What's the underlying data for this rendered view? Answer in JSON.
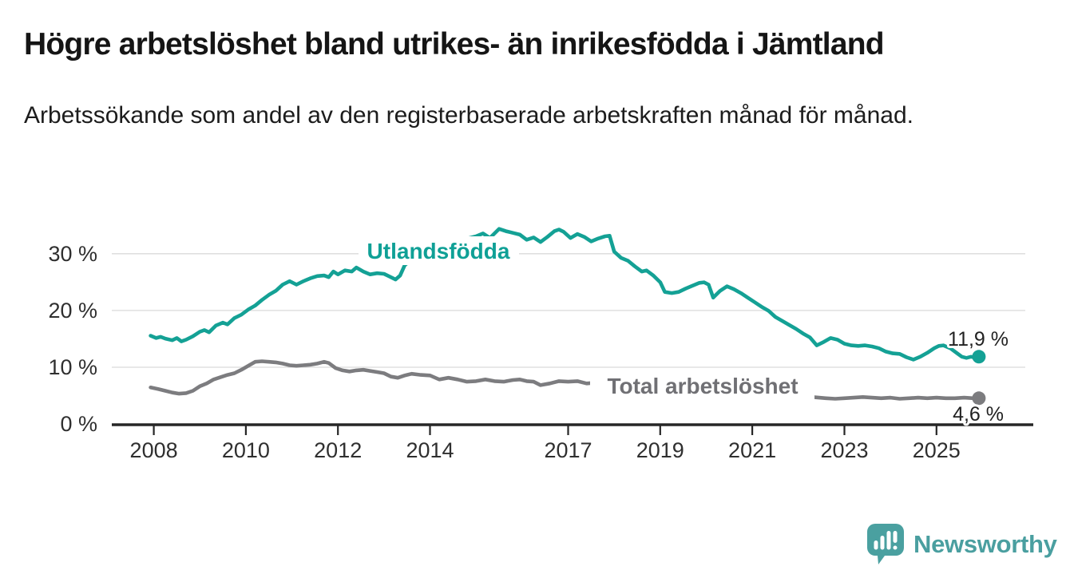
{
  "header": {
    "title": "Högre arbetslöshet bland utrikes- än inrikesfödda i Jämtland",
    "subtitle": "Arbetssökande som andel av den registerbaserade arbetskraften månad för månad."
  },
  "branding": {
    "name": "Newsworthy",
    "logo_icon": "bar-chart-speech-bubble-icon",
    "color": "#4a9fa0"
  },
  "colors": {
    "accent_teal": "#14a195",
    "neutral_gray": "#7c7c7f",
    "grid": "#dadada",
    "axis": "#262626",
    "text_dark": "#2f2f2f"
  },
  "chart_data": {
    "type": "line",
    "title": "Högre arbetslöshet bland utrikes- än inrikesfödda i Jämtland",
    "subtitle": "Arbetssökande som andel av den registerbaserade arbetskraften månad för månad.",
    "unit": "%",
    "grid": true,
    "legend_position": "inline-labels-on-lines",
    "x_axis": {
      "range": [
        2007.9,
        2026.3
      ],
      "ticks": [
        2008,
        2010,
        2012,
        2014,
        2017,
        2019,
        2021,
        2023,
        2025
      ],
      "tick_labels": [
        "2008",
        "2010",
        "2012",
        "2014",
        "2017",
        "2019",
        "2021",
        "2023",
        "2025"
      ]
    },
    "y_axis": {
      "range": [
        0,
        36
      ],
      "ticks": [
        0,
        10,
        20,
        30
      ],
      "tick_labels": [
        "0 %",
        "10 %",
        "20 %",
        "30 %"
      ]
    },
    "series": [
      {
        "name": "Utlandsfödda",
        "color": "#14a195",
        "end_value": 11.9,
        "end_label": "11,9 %",
        "points": [
          [
            2007.93,
            15.6
          ],
          [
            2008.05,
            15.2
          ],
          [
            2008.15,
            15.4
          ],
          [
            2008.25,
            15.1
          ],
          [
            2008.4,
            14.8
          ],
          [
            2008.5,
            15.2
          ],
          [
            2008.6,
            14.6
          ],
          [
            2008.7,
            14.9
          ],
          [
            2008.85,
            15.5
          ],
          [
            2009.0,
            16.3
          ],
          [
            2009.1,
            16.6
          ],
          [
            2009.2,
            16.2
          ],
          [
            2009.35,
            17.4
          ],
          [
            2009.5,
            17.9
          ],
          [
            2009.6,
            17.6
          ],
          [
            2009.75,
            18.7
          ],
          [
            2009.9,
            19.3
          ],
          [
            2010.05,
            20.2
          ],
          [
            2010.2,
            20.9
          ],
          [
            2010.35,
            21.9
          ],
          [
            2010.5,
            22.8
          ],
          [
            2010.65,
            23.5
          ],
          [
            2010.8,
            24.6
          ],
          [
            2010.95,
            25.2
          ],
          [
            2011.1,
            24.6
          ],
          [
            2011.25,
            25.2
          ],
          [
            2011.4,
            25.7
          ],
          [
            2011.55,
            26.1
          ],
          [
            2011.7,
            26.2
          ],
          [
            2011.8,
            25.9
          ],
          [
            2011.9,
            26.9
          ],
          [
            2012.0,
            26.4
          ],
          [
            2012.15,
            27.1
          ],
          [
            2012.3,
            26.9
          ],
          [
            2012.4,
            27.6
          ],
          [
            2012.55,
            26.9
          ],
          [
            2012.7,
            26.4
          ],
          [
            2012.85,
            26.6
          ],
          [
            2013.0,
            26.5
          ],
          [
            2013.1,
            26.1
          ],
          [
            2013.25,
            25.5
          ],
          [
            2013.35,
            26.2
          ],
          [
            2013.45,
            28.0
          ],
          [
            2013.55,
            28.7
          ],
          [
            2013.75,
            29.6
          ],
          [
            2014.0,
            30.5
          ],
          [
            2014.25,
            31.3
          ],
          [
            2014.5,
            31.9
          ],
          [
            2014.75,
            32.6
          ],
          [
            2015.0,
            33.1
          ],
          [
            2015.15,
            33.6
          ],
          [
            2015.3,
            32.8
          ],
          [
            2015.5,
            34.4
          ],
          [
            2015.65,
            34.0
          ],
          [
            2015.8,
            33.7
          ],
          [
            2015.95,
            33.4
          ],
          [
            2016.1,
            32.5
          ],
          [
            2016.25,
            32.9
          ],
          [
            2016.4,
            32.1
          ],
          [
            2016.55,
            33.0
          ],
          [
            2016.7,
            34.0
          ],
          [
            2016.8,
            34.3
          ],
          [
            2016.9,
            33.9
          ],
          [
            2017.05,
            32.8
          ],
          [
            2017.2,
            33.5
          ],
          [
            2017.35,
            33.0
          ],
          [
            2017.5,
            32.2
          ],
          [
            2017.65,
            32.7
          ],
          [
            2017.8,
            33.1
          ],
          [
            2017.9,
            33.2
          ],
          [
            2018.0,
            30.4
          ],
          [
            2018.15,
            29.3
          ],
          [
            2018.3,
            28.8
          ],
          [
            2018.45,
            27.8
          ],
          [
            2018.6,
            26.9
          ],
          [
            2018.7,
            27.1
          ],
          [
            2018.85,
            26.2
          ],
          [
            2019.0,
            25.0
          ],
          [
            2019.1,
            23.3
          ],
          [
            2019.25,
            23.1
          ],
          [
            2019.4,
            23.3
          ],
          [
            2019.55,
            23.9
          ],
          [
            2019.7,
            24.4
          ],
          [
            2019.85,
            24.9
          ],
          [
            2019.95,
            25.0
          ],
          [
            2020.05,
            24.6
          ],
          [
            2020.15,
            22.3
          ],
          [
            2020.3,
            23.5
          ],
          [
            2020.45,
            24.3
          ],
          [
            2020.6,
            23.8
          ],
          [
            2020.75,
            23.1
          ],
          [
            2020.9,
            22.3
          ],
          [
            2021.05,
            21.5
          ],
          [
            2021.2,
            20.7
          ],
          [
            2021.35,
            20.0
          ],
          [
            2021.5,
            18.9
          ],
          [
            2021.65,
            18.2
          ],
          [
            2021.8,
            17.5
          ],
          [
            2021.95,
            16.8
          ],
          [
            2022.1,
            16.0
          ],
          [
            2022.25,
            15.3
          ],
          [
            2022.4,
            13.9
          ],
          [
            2022.55,
            14.5
          ],
          [
            2022.7,
            15.2
          ],
          [
            2022.85,
            14.9
          ],
          [
            2023.0,
            14.2
          ],
          [
            2023.15,
            13.9
          ],
          [
            2023.3,
            13.8
          ],
          [
            2023.45,
            13.9
          ],
          [
            2023.6,
            13.7
          ],
          [
            2023.75,
            13.4
          ],
          [
            2023.9,
            12.8
          ],
          [
            2024.05,
            12.5
          ],
          [
            2024.2,
            12.4
          ],
          [
            2024.35,
            11.8
          ],
          [
            2024.5,
            11.4
          ],
          [
            2024.65,
            11.9
          ],
          [
            2024.8,
            12.6
          ],
          [
            2024.95,
            13.4
          ],
          [
            2025.05,
            13.8
          ],
          [
            2025.15,
            13.9
          ],
          [
            2025.3,
            13.4
          ],
          [
            2025.45,
            12.5
          ],
          [
            2025.55,
            11.9
          ],
          [
            2025.65,
            11.7
          ],
          [
            2025.75,
            11.9
          ],
          [
            2025.85,
            11.7
          ],
          [
            2025.92,
            11.9
          ]
        ]
      },
      {
        "name": "Total arbetslöshet",
        "color": "#7c7c7f",
        "end_value": 4.6,
        "end_label": "4,6 %",
        "points": [
          [
            2007.93,
            6.5
          ],
          [
            2008.1,
            6.2
          ],
          [
            2008.25,
            5.9
          ],
          [
            2008.4,
            5.6
          ],
          [
            2008.55,
            5.4
          ],
          [
            2008.7,
            5.5
          ],
          [
            2008.85,
            5.9
          ],
          [
            2009.0,
            6.7
          ],
          [
            2009.15,
            7.2
          ],
          [
            2009.3,
            7.9
          ],
          [
            2009.45,
            8.3
          ],
          [
            2009.6,
            8.7
          ],
          [
            2009.75,
            9.0
          ],
          [
            2009.9,
            9.6
          ],
          [
            2010.05,
            10.3
          ],
          [
            2010.2,
            11.0
          ],
          [
            2010.35,
            11.1
          ],
          [
            2010.5,
            11.0
          ],
          [
            2010.65,
            10.9
          ],
          [
            2010.8,
            10.7
          ],
          [
            2010.95,
            10.4
          ],
          [
            2011.1,
            10.3
          ],
          [
            2011.25,
            10.4
          ],
          [
            2011.4,
            10.5
          ],
          [
            2011.55,
            10.7
          ],
          [
            2011.7,
            11.0
          ],
          [
            2011.8,
            10.8
          ],
          [
            2011.95,
            9.9
          ],
          [
            2012.1,
            9.5
          ],
          [
            2012.25,
            9.3
          ],
          [
            2012.4,
            9.5
          ],
          [
            2012.55,
            9.6
          ],
          [
            2012.7,
            9.4
          ],
          [
            2012.85,
            9.2
          ],
          [
            2013.0,
            9.0
          ],
          [
            2013.15,
            8.4
          ],
          [
            2013.3,
            8.2
          ],
          [
            2013.45,
            8.6
          ],
          [
            2013.6,
            8.9
          ],
          [
            2013.8,
            8.7
          ],
          [
            2014.0,
            8.6
          ],
          [
            2014.2,
            7.9
          ],
          [
            2014.4,
            8.2
          ],
          [
            2014.6,
            7.9
          ],
          [
            2014.8,
            7.5
          ],
          [
            2015.0,
            7.6
          ],
          [
            2015.2,
            7.9
          ],
          [
            2015.4,
            7.6
          ],
          [
            2015.6,
            7.5
          ],
          [
            2015.8,
            7.8
          ],
          [
            2015.95,
            7.9
          ],
          [
            2016.1,
            7.6
          ],
          [
            2016.25,
            7.5
          ],
          [
            2016.4,
            6.9
          ],
          [
            2016.6,
            7.2
          ],
          [
            2016.8,
            7.6
          ],
          [
            2017.0,
            7.5
          ],
          [
            2017.2,
            7.6
          ],
          [
            2017.4,
            7.2
          ],
          [
            2017.55,
            7.3
          ],
          [
            2017.8,
            7.1
          ],
          [
            2018.2,
            6.8
          ],
          [
            2018.6,
            6.5
          ],
          [
            2019.0,
            6.2
          ],
          [
            2019.5,
            6.0
          ],
          [
            2020.0,
            6.3
          ],
          [
            2020.5,
            6.2
          ],
          [
            2021.0,
            5.9
          ],
          [
            2021.5,
            5.5
          ],
          [
            2022.0,
            5.0
          ],
          [
            2022.3,
            4.8
          ],
          [
            2022.45,
            4.7
          ],
          [
            2022.6,
            4.6
          ],
          [
            2022.8,
            4.5
          ],
          [
            2023.0,
            4.6
          ],
          [
            2023.2,
            4.7
          ],
          [
            2023.4,
            4.8
          ],
          [
            2023.6,
            4.7
          ],
          [
            2023.8,
            4.6
          ],
          [
            2024.0,
            4.7
          ],
          [
            2024.2,
            4.5
          ],
          [
            2024.4,
            4.6
          ],
          [
            2024.6,
            4.7
          ],
          [
            2024.8,
            4.6
          ],
          [
            2025.0,
            4.7
          ],
          [
            2025.2,
            4.6
          ],
          [
            2025.4,
            4.6
          ],
          [
            2025.6,
            4.7
          ],
          [
            2025.8,
            4.6
          ],
          [
            2025.92,
            4.6
          ]
        ]
      }
    ]
  }
}
